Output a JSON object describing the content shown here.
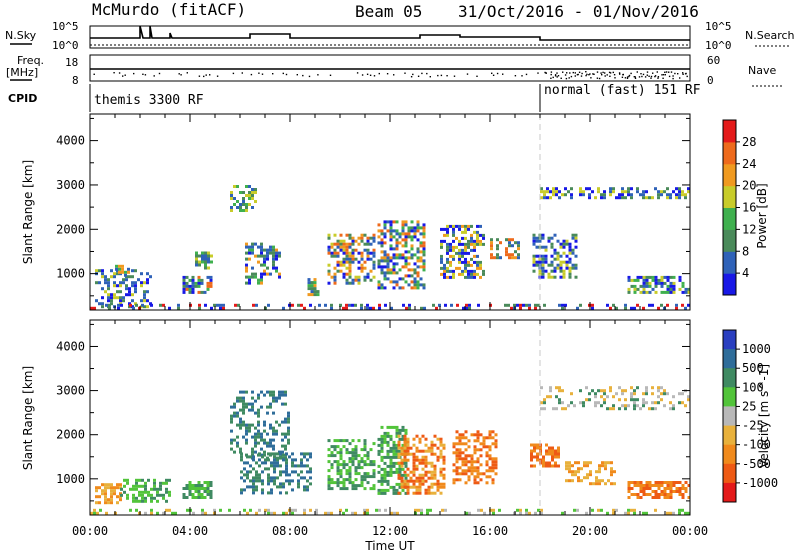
{
  "header": {
    "title": "McMurdo (fitACF)",
    "beam": "Beam 05",
    "date_range": "31/Oct/2016 - 01/Nov/2016"
  },
  "strips": {
    "nsky_label": "N.Sky",
    "nsky_ticks": [
      "10^5",
      "10^0"
    ],
    "nsearch_label": "N.Search",
    "nsearch_ticks": [
      "10^5",
      "10^0"
    ],
    "freq_label": "Freq.",
    "freq_unit": "[MHz]",
    "freq_ticks": [
      "18",
      "8"
    ],
    "nave_label": "Nave",
    "nave_ticks": [
      "60",
      "0"
    ],
    "cpid_label": "CPID",
    "cpid_segments": [
      {
        "label": "themis 3300 RF",
        "start_hour": 0
      },
      {
        "label": "normal (fast) 151 RF",
        "start_hour": 18
      }
    ]
  },
  "chart_data": [
    {
      "type": "heatmap",
      "name": "power",
      "ylabel": "Slant Range [km]",
      "yticks": [
        "1000",
        "2000",
        "3000",
        "4000"
      ],
      "ylim": [
        180,
        4600
      ],
      "xlim_hours": [
        0,
        24
      ],
      "colorbar_label": "Power [dB]",
      "colorbar_ticks": [
        "4",
        "8",
        "12",
        "16",
        "20",
        "24",
        "28"
      ],
      "colorbar_colors": [
        "#1818e6",
        "#2f62b8",
        "#4a8a5a",
        "#3fb04e",
        "#c8cc2a",
        "#f09a20",
        "#ee6a1c",
        "#e41a1a"
      ],
      "regions": [
        {
          "t0": 0.2,
          "t1": 2.4,
          "r0": 250,
          "r1": 1100,
          "d": 0.45,
          "pal": [
            0,
            1,
            1,
            2,
            4
          ]
        },
        {
          "t0": 1.0,
          "t1": 1.5,
          "r0": 900,
          "r1": 1200,
          "d": 0.6,
          "pal": [
            1,
            2,
            3,
            5
          ]
        },
        {
          "t0": 3.7,
          "t1": 4.8,
          "r0": 550,
          "r1": 950,
          "d": 0.75,
          "pal": [
            0,
            1,
            2,
            3,
            6
          ]
        },
        {
          "t0": 4.2,
          "t1": 4.9,
          "r0": 1150,
          "r1": 1500,
          "d": 0.6,
          "pal": [
            1,
            2,
            3,
            4
          ]
        },
        {
          "t0": 5.6,
          "t1": 6.6,
          "r0": 2400,
          "r1": 3000,
          "d": 0.55,
          "pal": [
            1,
            2,
            3,
            4
          ]
        },
        {
          "t0": 6.2,
          "t1": 7.6,
          "r0": 800,
          "r1": 1700,
          "d": 0.5,
          "pal": [
            0,
            1,
            2,
            3,
            5
          ]
        },
        {
          "t0": 8.7,
          "t1": 9.1,
          "r0": 500,
          "r1": 900,
          "d": 0.7,
          "pal": [
            1,
            2,
            3,
            5
          ]
        },
        {
          "t0": 9.5,
          "t1": 11.3,
          "r0": 800,
          "r1": 1900,
          "d": 0.55,
          "pal": [
            0,
            1,
            2,
            4,
            5,
            6
          ]
        },
        {
          "t0": 11.5,
          "t1": 13.4,
          "r0": 700,
          "r1": 2200,
          "d": 0.6,
          "pal": [
            0,
            1,
            2,
            3,
            5,
            6
          ]
        },
        {
          "t0": 14.0,
          "t1": 15.8,
          "r0": 900,
          "r1": 2100,
          "d": 0.55,
          "pal": [
            0,
            1,
            2,
            4,
            5
          ]
        },
        {
          "t0": 16.0,
          "t1": 17.1,
          "r0": 1350,
          "r1": 1800,
          "d": 0.6,
          "pal": [
            1,
            2,
            5,
            6
          ]
        },
        {
          "t0": 17.7,
          "t1": 19.5,
          "r0": 900,
          "r1": 1900,
          "d": 0.5,
          "pal": [
            0,
            1,
            2,
            4
          ]
        },
        {
          "t0": 18.0,
          "t1": 24.0,
          "r0": 2700,
          "r1": 2950,
          "d": 0.45,
          "pal": [
            0,
            1,
            2,
            4
          ]
        },
        {
          "t0": 21.5,
          "t1": 24.0,
          "r0": 600,
          "r1": 950,
          "d": 0.6,
          "pal": [
            0,
            1,
            2,
            3,
            4
          ]
        },
        {
          "t0": 0.0,
          "t1": 24.0,
          "r0": 200,
          "r1": 320,
          "d": 0.35,
          "pal": [
            0,
            1,
            2,
            7
          ]
        }
      ]
    },
    {
      "type": "heatmap",
      "name": "velocity",
      "ylabel": "Slant Range [km]",
      "yticks": [
        "1000",
        "2000",
        "3000",
        "4000"
      ],
      "ylim": [
        180,
        4600
      ],
      "xlim_hours": [
        0,
        24
      ],
      "xlabel": "Time UT",
      "xticks": [
        "00:00",
        "04:00",
        "08:00",
        "12:00",
        "16:00",
        "20:00",
        "00:00"
      ],
      "colorbar_label": "Velocity [m s^-1]",
      "colorbar_ticks": [
        "1000",
        "500",
        "100",
        "25",
        "-25",
        "-100",
        "-500",
        "-1000"
      ],
      "colorbar_colors": [
        "#2a3fc0",
        "#2f6d9a",
        "#3f8a62",
        "#52c43a",
        "#b8b8b8",
        "#e8b13c",
        "#f08a1c",
        "#ee5a14",
        "#e41a1a"
      ],
      "regions": [
        {
          "t0": 0.2,
          "t1": 1.2,
          "r0": 450,
          "r1": 900,
          "d": 0.6,
          "pal": [
            5,
            6
          ]
        },
        {
          "t0": 1.2,
          "t1": 3.2,
          "r0": 500,
          "r1": 1000,
          "d": 0.45,
          "pal": [
            2,
            3
          ]
        },
        {
          "t0": 3.7,
          "t1": 4.8,
          "r0": 550,
          "r1": 950,
          "d": 0.75,
          "pal": [
            2,
            3
          ]
        },
        {
          "t0": 5.6,
          "t1": 8.0,
          "r0": 1500,
          "r1": 3000,
          "d": 0.4,
          "pal": [
            1,
            2
          ]
        },
        {
          "t0": 6.0,
          "t1": 8.8,
          "r0": 700,
          "r1": 1600,
          "d": 0.5,
          "pal": [
            2,
            1
          ]
        },
        {
          "t0": 9.5,
          "t1": 11.3,
          "r0": 800,
          "r1": 1900,
          "d": 0.55,
          "pal": [
            2,
            3
          ]
        },
        {
          "t0": 11.5,
          "t1": 12.6,
          "r0": 700,
          "r1": 2200,
          "d": 0.6,
          "pal": [
            2,
            3
          ]
        },
        {
          "t0": 12.3,
          "t1": 14.2,
          "r0": 700,
          "r1": 2000,
          "d": 0.55,
          "pal": [
            6,
            7,
            5
          ]
        },
        {
          "t0": 14.5,
          "t1": 16.2,
          "r0": 900,
          "r1": 2100,
          "d": 0.5,
          "pal": [
            6,
            7
          ]
        },
        {
          "t0": 17.6,
          "t1": 18.7,
          "r0": 1300,
          "r1": 1800,
          "d": 0.6,
          "pal": [
            6,
            7
          ]
        },
        {
          "t0": 19.0,
          "t1": 21.0,
          "r0": 900,
          "r1": 1400,
          "d": 0.45,
          "pal": [
            6,
            5
          ]
        },
        {
          "t0": 18.0,
          "t1": 24.0,
          "r0": 2600,
          "r1": 3100,
          "d": 0.35,
          "pal": [
            4,
            5,
            2
          ]
        },
        {
          "t0": 21.5,
          "t1": 24.0,
          "r0": 600,
          "r1": 950,
          "d": 0.6,
          "pal": [
            6,
            7
          ]
        },
        {
          "t0": 0.0,
          "t1": 24.0,
          "r0": 200,
          "r1": 320,
          "d": 0.3,
          "pal": [
            5,
            4,
            3
          ]
        }
      ]
    }
  ]
}
